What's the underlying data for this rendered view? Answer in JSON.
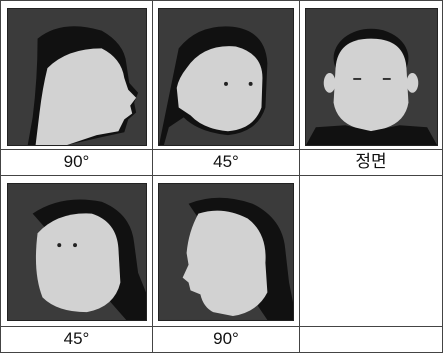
{
  "rows": [
    {
      "cells": [
        {
          "label": "90°",
          "icon": "face-profile-right-icon"
        },
        {
          "label": "45°",
          "icon": "face-three-quarter-right-icon"
        },
        {
          "label": "정면",
          "icon": "face-front-icon"
        }
      ]
    },
    {
      "cells": [
        {
          "label": "45°",
          "icon": "face-three-quarter-left-icon"
        },
        {
          "label": "90°",
          "icon": "face-profile-left-icon"
        },
        {
          "label": "",
          "icon": ""
        }
      ]
    }
  ],
  "colors": {
    "background": "#3b3b3b",
    "face": "#d2d2d2",
    "hair": "#111111",
    "grid": "#444444"
  }
}
